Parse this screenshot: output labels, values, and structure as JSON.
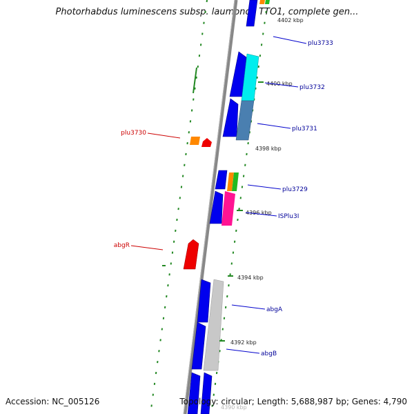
{
  "title": "Photorhabdus luminescens subsp. laumondii TTO1, complete gen...",
  "footer": {
    "accession": "Accession: NC_005126",
    "topology": "Topology: circular; Length: 5,688,987 bp; Genes: 4,790"
  },
  "colors": {
    "backbone": "#888888",
    "forward_gene": "#0000ee",
    "label_forward": "#000099",
    "label_reverse": "#cc0000",
    "reverse_gene": "#ee0000",
    "tick": "#228822"
  },
  "scale_labels": [
    "4402 kbp",
    "4400 kbp",
    "4398 kbp",
    "4396 kbp",
    "4394 kbp",
    "4392 kbp",
    "4390 kbp"
  ],
  "genes": {
    "forward": [
      "plu3733",
      "plu3732",
      "plu3731",
      "plu3729",
      "ISPlu3I",
      "abgA",
      "abgB"
    ],
    "reverse": [
      "plu3730",
      "abgR"
    ]
  }
}
